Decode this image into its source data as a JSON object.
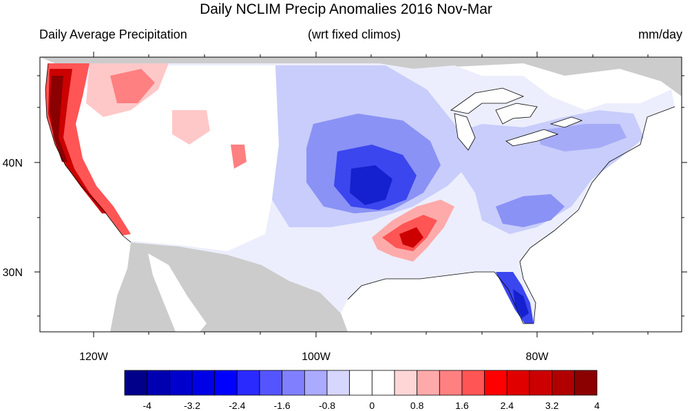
{
  "title": "Daily NCLIM Precip Anomalies 2016 Nov-Mar",
  "subtitle_left": "Daily Average Precipitation",
  "subtitle_center": "(wrt fixed climos)",
  "subtitle_right": "mm/day",
  "lon_labels": [
    "120W",
    "100W",
    "80W"
  ],
  "lat_labels": [
    "40N",
    "30N"
  ],
  "colorbar": {
    "colors": [
      "#00008b",
      "#0000b0",
      "#0000cd",
      "#0000e6",
      "#0000ff",
      "#2a2aff",
      "#5555ff",
      "#8080ff",
      "#aaaaff",
      "#d6d6ff",
      "#ffffff",
      "#ffffff",
      "#ffd6d6",
      "#ffaaaa",
      "#ff8080",
      "#ff5555",
      "#ff0000",
      "#e00000",
      "#cc0000",
      "#b00000",
      "#8b0000"
    ],
    "tick_labels": [
      "-4",
      "-3.2",
      "-2.4",
      "-1.6",
      "-0.8",
      "0",
      "0.8",
      "1.6",
      "2.4",
      "3.2",
      "4"
    ]
  },
  "land_mask_color": "#cccccc"
}
